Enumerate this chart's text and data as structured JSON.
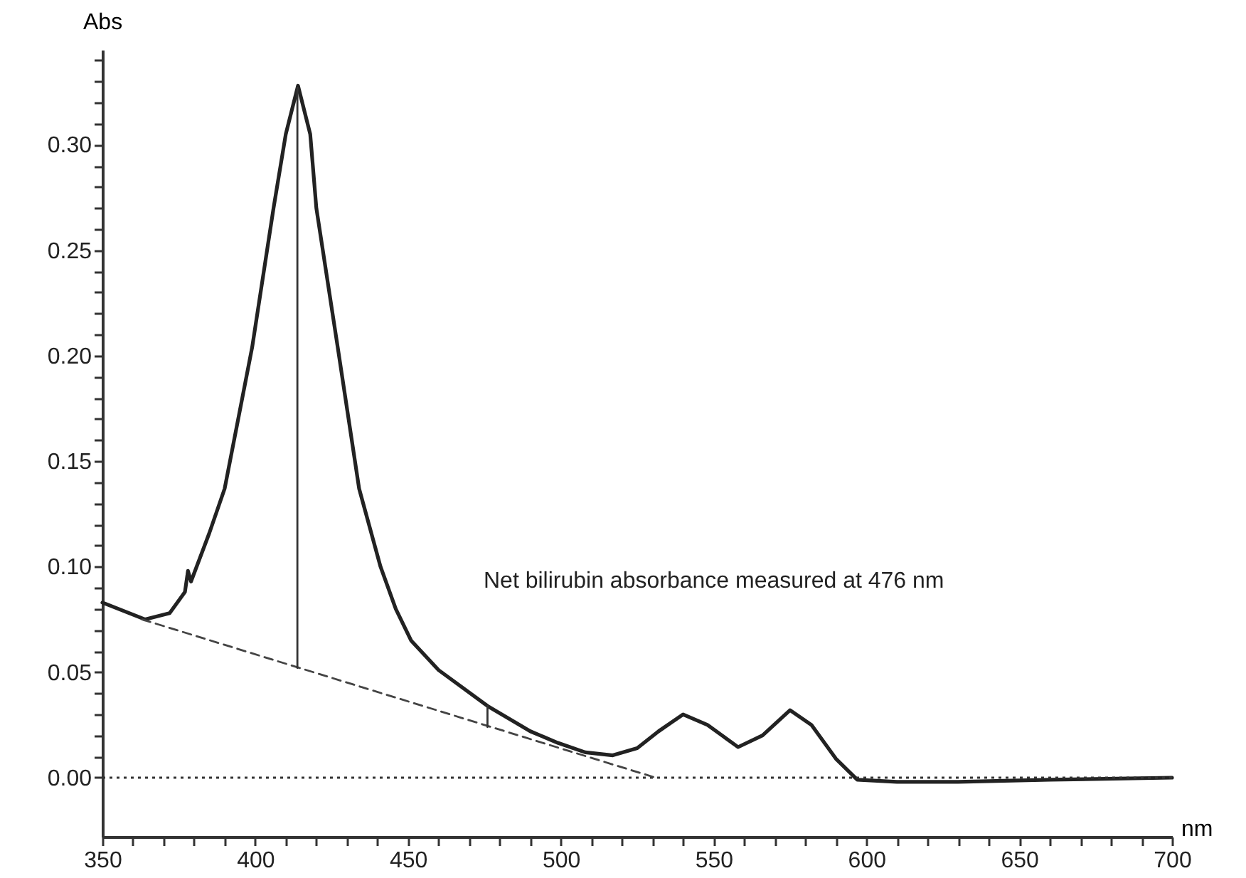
{
  "chart_data": {
    "type": "line",
    "xlabel": "nm",
    "ylabel": "Abs",
    "xlim": [
      350,
      700
    ],
    "ylim": [
      -0.028,
      0.345
    ],
    "xticks": [
      350,
      {
        "value": 360,
        "label": null
      },
      {
        "value": 370,
        "label": null
      },
      {
        "value": 380,
        "label": null
      },
      {
        "value": 390,
        "label": null
      },
      400,
      {
        "value": 410,
        "label": null
      },
      {
        "value": 420,
        "label": null
      },
      {
        "value": 430,
        "label": null
      },
      {
        "value": 440,
        "label": null
      },
      450,
      {
        "value": 460,
        "label": null
      },
      {
        "value": 470,
        "label": null
      },
      {
        "value": 480,
        "label": null
      },
      {
        "value": 490,
        "label": null
      },
      500,
      {
        "value": 510,
        "label": null
      },
      {
        "value": 520,
        "label": null
      },
      {
        "value": 530,
        "label": null
      },
      {
        "value": 540,
        "label": null
      },
      550,
      {
        "value": 560,
        "label": null
      },
      {
        "value": 570,
        "label": null
      },
      {
        "value": 580,
        "label": null
      },
      {
        "value": 590,
        "label": null
      },
      600,
      {
        "value": 610,
        "label": null
      },
      {
        "value": 620,
        "label": null
      },
      {
        "value": 630,
        "label": null
      },
      {
        "value": 640,
        "label": null
      },
      650,
      {
        "value": 660,
        "label": null
      },
      {
        "value": 670,
        "label": null
      },
      {
        "value": 680,
        "label": null
      },
      {
        "value": 690,
        "label": null
      },
      700
    ],
    "yticks": [
      {
        "value": 0,
        "label": "0.00"
      },
      {
        "value": 0.01,
        "label": null
      },
      {
        "value": 0.02,
        "label": null
      },
      {
        "value": 0.03,
        "label": null
      },
      {
        "value": 0.04,
        "label": null
      },
      0.05,
      {
        "value": 0.06,
        "label": null
      },
      {
        "value": 0.07,
        "label": null
      },
      {
        "value": 0.08,
        "label": null
      },
      {
        "value": 0.09,
        "label": null
      },
      {
        "value": 0.1,
        "label": "0.10"
      },
      {
        "value": 0.11,
        "label": null
      },
      {
        "value": 0.12,
        "label": null
      },
      {
        "value": 0.13,
        "label": null
      },
      {
        "value": 0.14,
        "label": null
      },
      0.15,
      {
        "value": 0.16,
        "label": null
      },
      {
        "value": 0.17,
        "label": null
      },
      {
        "value": 0.18,
        "label": null
      },
      {
        "value": 0.19,
        "label": null
      },
      {
        "value": 0.2,
        "label": "0.20"
      },
      {
        "value": 0.21,
        "label": null
      },
      {
        "value": 0.22,
        "label": null
      },
      {
        "value": 0.23,
        "label": null
      },
      {
        "value": 0.24,
        "label": null
      },
      0.25,
      {
        "value": 0.26,
        "label": null
      },
      {
        "value": 0.27,
        "label": null
      },
      {
        "value": 0.28,
        "label": null
      },
      {
        "value": 0.29,
        "label": null
      },
      {
        "value": 0.3,
        "label": "0.30"
      },
      {
        "value": 0.31,
        "label": null
      },
      {
        "value": 0.32,
        "label": null
      },
      {
        "value": 0.33,
        "label": null
      },
      {
        "value": 0.34,
        "label": null
      }
    ],
    "grid": false,
    "series": [
      {
        "color": "#222222",
        "line_style": "solid",
        "x": [
          350,
          364,
          372,
          377,
          378,
          379,
          385,
          390,
          399,
          406,
          410,
          414,
          418,
          420,
          427,
          434,
          441,
          446,
          451,
          460,
          476,
          490,
          499,
          508,
          517,
          525,
          532,
          540,
          548,
          558,
          566,
          575,
          582,
          590,
          597,
          610,
          630,
          660,
          700
        ],
        "values": [
          0.083,
          0.075,
          0.078,
          0.088,
          0.098,
          0.093,
          0.116,
          0.137,
          0.204,
          0.27,
          0.305,
          0.328,
          0.305,
          0.27,
          0.204,
          0.137,
          0.1,
          0.08,
          0.065,
          0.051,
          0.034,
          0.022,
          0.0165,
          0.012,
          0.0106,
          0.014,
          0.022,
          0.03,
          0.025,
          0.0145,
          0.02,
          0.032,
          0.025,
          0.009,
          -0.001,
          -0.002,
          -0.002,
          -0.001,
          0.0
        ]
      },
      {
        "color": "#444444",
        "line_style": "dashed",
        "x": [
          363,
          531
        ],
        "values": [
          0.075,
          0.0
        ]
      },
      {
        "color": "#333333",
        "line_style": "solid",
        "x": [
          413.8,
          413.8
        ],
        "values": [
          0.052,
          0.327
        ]
      },
      {
        "color": "#333333",
        "line_style": "solid",
        "x": [
          476,
          476
        ],
        "values": [
          0.024,
          0.034
        ]
      }
    ],
    "ref_lines": [
      {
        "axis": "y",
        "value": 0,
        "line_style": "dotted",
        "color": "#333333"
      }
    ],
    "annotations": [
      "Net bilirubin absorbance measured at 476 nm"
    ]
  }
}
